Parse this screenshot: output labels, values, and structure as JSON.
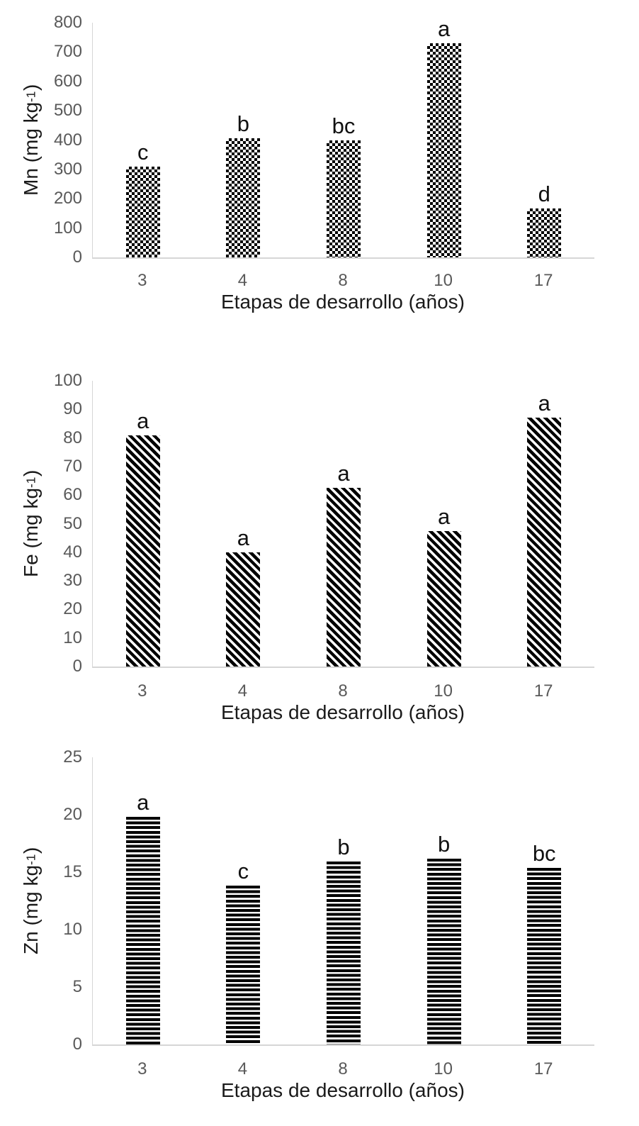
{
  "page": {
    "background_color": "#ffffff",
    "tick_label_color": "#595959",
    "axis_line_color": "#d6d6d6",
    "bar_color": "#000000",
    "letter_color": "#111111"
  },
  "chart_data": [
    {
      "type": "bar",
      "element": "Mn",
      "title": "",
      "ylabel_prefix": "Mn (mg kg",
      "ylabel_sup": "-1",
      "ylabel_suffix": ")",
      "xlabel": "Etapas de desarrollo (años)",
      "categories": [
        "3",
        "4",
        "8",
        "10",
        "17"
      ],
      "values": [
        310,
        405,
        398,
        730,
        168
      ],
      "sig_letters": [
        "c",
        "b",
        "bc",
        "a",
        "d"
      ],
      "ylim": [
        0,
        800
      ],
      "yticks": [
        0,
        100,
        200,
        300,
        400,
        500,
        600,
        700,
        800
      ],
      "bar_pattern": "checker",
      "grid": false,
      "legend": "none"
    },
    {
      "type": "bar",
      "element": "Fe",
      "title": "",
      "ylabel_prefix": "Fe (mg kg",
      "ylabel_sup": "-1",
      "ylabel_suffix": ")",
      "xlabel": "Etapas de desarrollo (años)",
      "categories": [
        "3",
        "4",
        "8",
        "10",
        "17"
      ],
      "values": [
        81,
        40,
        62.5,
        47.5,
        87
      ],
      "sig_letters": [
        "a",
        "a",
        "a",
        "a",
        "a"
      ],
      "ylim": [
        0,
        100
      ],
      "yticks": [
        0,
        10,
        20,
        30,
        40,
        50,
        60,
        70,
        80,
        90,
        100
      ],
      "bar_pattern": "diag",
      "grid": false,
      "legend": "none"
    },
    {
      "type": "bar",
      "element": "Zn",
      "title": "",
      "ylabel_prefix": "Zn (mg kg",
      "ylabel_sup": "-1",
      "ylabel_suffix": ")",
      "xlabel": "Etapas de desarrollo (años)",
      "categories": [
        "3",
        "4",
        "8",
        "10",
        "17"
      ],
      "values": [
        19.8,
        13.8,
        15.9,
        16.2,
        15.4
      ],
      "sig_letters": [
        "a",
        "c",
        "b",
        "b",
        "bc"
      ],
      "ylim": [
        0,
        25
      ],
      "yticks": [
        0,
        5,
        10,
        15,
        20,
        25
      ],
      "bar_pattern": "hlines",
      "grid": false,
      "legend": "none"
    }
  ]
}
